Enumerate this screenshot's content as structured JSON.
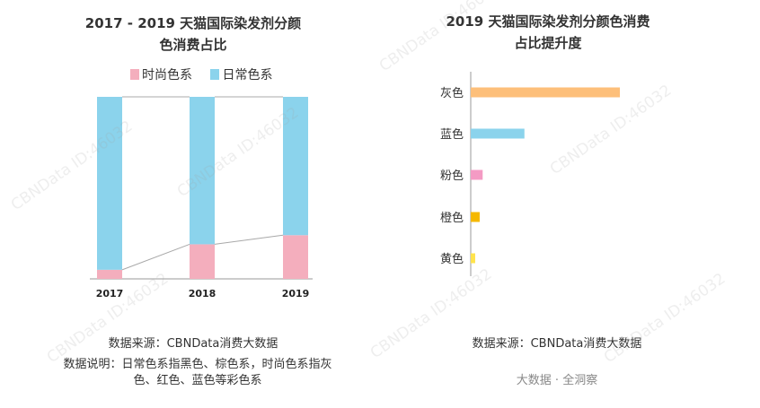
{
  "left": {
    "title": "2017 - 2019 天猫国际染发剂分颜色消费占比",
    "legend": [
      {
        "label": "时尚色系",
        "color": "#F4AEBD"
      },
      {
        "label": "日常色系",
        "color": "#8BD3EC"
      }
    ],
    "source": "数据来源：CBNData消费大数据",
    "description": "数据说明：日常色系指黑色、棕色系，时尚色系指灰色、红色、蓝色等彩色系"
  },
  "right": {
    "title": "2019 天猫国际染发剂分颜色消费占比提升度",
    "source": "数据来源：CBNData消费大数据",
    "footer": "大数据 · 全洞察"
  },
  "watermark": "CBNData ID:46032",
  "chart_data": [
    {
      "type": "bar",
      "stacked": true,
      "title": "2017 - 2019 天猫国际染发剂分颜色消费占比",
      "categories": [
        "2017",
        "2018",
        "2019"
      ],
      "series": [
        {
          "name": "时尚色系",
          "values": [
            0.05,
            0.19,
            0.24
          ],
          "color": "#F4AEBD"
        },
        {
          "name": "日常色系",
          "values": [
            0.95,
            0.81,
            0.76
          ],
          "color": "#8BD3EC"
        }
      ],
      "ylim": [
        0,
        1
      ],
      "legend": "top",
      "grid": false
    },
    {
      "type": "bar",
      "orientation": "horizontal",
      "title": "2019 天猫国际染发剂分颜色消费占比提升度",
      "categories": [
        "灰色",
        "蓝色",
        "粉色",
        "橙色",
        "黄色"
      ],
      "values": [
        100,
        36,
        8,
        6,
        3
      ],
      "colors": [
        "#FDBF7A",
        "#8BD3EC",
        "#F49BC4",
        "#F5B800",
        "#FFE34D"
      ],
      "grid": false
    }
  ]
}
